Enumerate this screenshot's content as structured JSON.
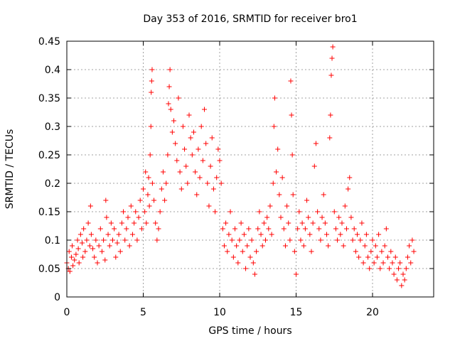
{
  "chart_data": {
    "type": "scatter",
    "title": "Day 353 of 2016, SRMTID for receiver bro1",
    "xlabel": "GPS time / hours",
    "ylabel": "SRMTID / TECUs",
    "xlim": [
      0,
      24
    ],
    "ylim": [
      0,
      0.45
    ],
    "xticks": [
      0,
      5,
      10,
      15,
      20
    ],
    "yticks": [
      0,
      0.05,
      0.1,
      0.15,
      0.2,
      0.25,
      0.3,
      0.35,
      0.4,
      0.45
    ],
    "xtick_labels": [
      "0",
      "5",
      "10",
      "15",
      "20"
    ],
    "ytick_labels": [
      "0",
      "0.05",
      "0.1",
      "0.15",
      "0.2",
      "0.25",
      "0.3",
      "0.35",
      "0.4",
      "0.45"
    ],
    "grid": true,
    "marker": "+",
    "color": "#ff0000",
    "series": [
      {
        "name": "SRMTID",
        "points": [
          [
            0.0,
            0.06
          ],
          [
            0.1,
            0.05
          ],
          [
            0.15,
            0.08
          ],
          [
            0.2,
            0.045
          ],
          [
            0.3,
            0.07
          ],
          [
            0.35,
            0.09
          ],
          [
            0.4,
            0.055
          ],
          [
            0.5,
            0.065
          ],
          [
            0.6,
            0.075
          ],
          [
            0.7,
            0.1
          ],
          [
            0.75,
            0.085
          ],
          [
            0.8,
            0.06
          ],
          [
            0.9,
            0.11
          ],
          [
            1.0,
            0.095
          ],
          [
            1.05,
            0.07
          ],
          [
            1.1,
            0.12
          ],
          [
            1.2,
            0.08
          ],
          [
            1.3,
            0.1
          ],
          [
            1.4,
            0.13
          ],
          [
            1.5,
            0.09
          ],
          [
            1.55,
            0.16
          ],
          [
            1.6,
            0.11
          ],
          [
            1.7,
            0.085
          ],
          [
            1.8,
            0.07
          ],
          [
            1.9,
            0.1
          ],
          [
            2.0,
            0.06
          ],
          [
            2.1,
            0.09
          ],
          [
            2.2,
            0.12
          ],
          [
            2.3,
            0.08
          ],
          [
            2.4,
            0.1
          ],
          [
            2.5,
            0.065
          ],
          [
            2.55,
            0.17
          ],
          [
            2.6,
            0.14
          ],
          [
            2.7,
            0.11
          ],
          [
            2.8,
            0.09
          ],
          [
            2.9,
            0.13
          ],
          [
            3.0,
            0.1
          ],
          [
            3.1,
            0.12
          ],
          [
            3.2,
            0.07
          ],
          [
            3.3,
            0.095
          ],
          [
            3.4,
            0.11
          ],
          [
            3.5,
            0.08
          ],
          [
            3.6,
            0.13
          ],
          [
            3.7,
            0.15
          ],
          [
            3.8,
            0.1
          ],
          [
            3.9,
            0.12
          ],
          [
            4.0,
            0.14
          ],
          [
            4.1,
            0.09
          ],
          [
            4.2,
            0.16
          ],
          [
            4.3,
            0.11
          ],
          [
            4.4,
            0.13
          ],
          [
            4.5,
            0.15
          ],
          [
            4.6,
            0.1
          ],
          [
            4.7,
            0.14
          ],
          [
            4.8,
            0.17
          ],
          [
            4.9,
            0.12
          ],
          [
            5.0,
            0.19
          ],
          [
            5.1,
            0.15
          ],
          [
            5.15,
            0.22
          ],
          [
            5.2,
            0.13
          ],
          [
            5.3,
            0.18
          ],
          [
            5.35,
            0.21
          ],
          [
            5.4,
            0.16
          ],
          [
            5.45,
            0.25
          ],
          [
            5.5,
            0.3
          ],
          [
            5.52,
            0.36
          ],
          [
            5.55,
            0.38
          ],
          [
            5.58,
            0.4
          ],
          [
            5.6,
            0.2
          ],
          [
            5.7,
            0.17
          ],
          [
            5.8,
            0.13
          ],
          [
            5.9,
            0.1
          ],
          [
            6.0,
            0.12
          ],
          [
            6.1,
            0.15
          ],
          [
            6.2,
            0.19
          ],
          [
            6.3,
            0.22
          ],
          [
            6.4,
            0.17
          ],
          [
            6.5,
            0.2
          ],
          [
            6.6,
            0.25
          ],
          [
            6.65,
            0.34
          ],
          [
            6.7,
            0.37
          ],
          [
            6.75,
            0.4
          ],
          [
            6.8,
            0.33
          ],
          [
            6.9,
            0.29
          ],
          [
            7.0,
            0.31
          ],
          [
            7.1,
            0.27
          ],
          [
            7.2,
            0.24
          ],
          [
            7.3,
            0.35
          ],
          [
            7.4,
            0.22
          ],
          [
            7.5,
            0.19
          ],
          [
            7.6,
            0.3
          ],
          [
            7.7,
            0.26
          ],
          [
            7.8,
            0.23
          ],
          [
            7.9,
            0.2
          ],
          [
            8.0,
            0.32
          ],
          [
            8.1,
            0.28
          ],
          [
            8.2,
            0.25
          ],
          [
            8.3,
            0.29
          ],
          [
            8.4,
            0.22
          ],
          [
            8.5,
            0.18
          ],
          [
            8.6,
            0.26
          ],
          [
            8.7,
            0.21
          ],
          [
            8.8,
            0.3
          ],
          [
            8.9,
            0.24
          ],
          [
            9.0,
            0.33
          ],
          [
            9.1,
            0.27
          ],
          [
            9.2,
            0.2
          ],
          [
            9.3,
            0.16
          ],
          [
            9.4,
            0.23
          ],
          [
            9.5,
            0.28
          ],
          [
            9.6,
            0.19
          ],
          [
            9.7,
            0.15
          ],
          [
            9.8,
            0.21
          ],
          [
            9.9,
            0.26
          ],
          [
            10.0,
            0.24
          ],
          [
            10.1,
            0.2
          ],
          [
            10.2,
            0.12
          ],
          [
            10.3,
            0.09
          ],
          [
            10.4,
            0.13
          ],
          [
            10.5,
            0.08
          ],
          [
            10.6,
            0.11
          ],
          [
            10.7,
            0.15
          ],
          [
            10.8,
            0.1
          ],
          [
            10.9,
            0.07
          ],
          [
            11.0,
            0.12
          ],
          [
            11.1,
            0.09
          ],
          [
            11.2,
            0.06
          ],
          [
            11.3,
            0.1
          ],
          [
            11.4,
            0.13
          ],
          [
            11.5,
            0.08
          ],
          [
            11.6,
            0.11
          ],
          [
            11.7,
            0.05
          ],
          [
            11.8,
            0.09
          ],
          [
            11.9,
            0.12
          ],
          [
            12.0,
            0.07
          ],
          [
            12.1,
            0.1
          ],
          [
            12.2,
            0.06
          ],
          [
            12.3,
            0.04
          ],
          [
            12.4,
            0.08
          ],
          [
            12.5,
            0.12
          ],
          [
            12.6,
            0.15
          ],
          [
            12.7,
            0.11
          ],
          [
            12.8,
            0.09
          ],
          [
            12.9,
            0.13
          ],
          [
            13.0,
            0.1
          ],
          [
            13.1,
            0.14
          ],
          [
            13.2,
            0.12
          ],
          [
            13.3,
            0.16
          ],
          [
            13.4,
            0.11
          ],
          [
            13.5,
            0.2
          ],
          [
            13.55,
            0.3
          ],
          [
            13.6,
            0.35
          ],
          [
            13.7,
            0.22
          ],
          [
            13.8,
            0.26
          ],
          [
            13.9,
            0.18
          ],
          [
            14.0,
            0.14
          ],
          [
            14.1,
            0.21
          ],
          [
            14.2,
            0.12
          ],
          [
            14.3,
            0.09
          ],
          [
            14.4,
            0.16
          ],
          [
            14.5,
            0.13
          ],
          [
            14.6,
            0.1
          ],
          [
            14.65,
            0.38
          ],
          [
            14.7,
            0.32
          ],
          [
            14.75,
            0.25
          ],
          [
            14.8,
            0.18
          ],
          [
            14.9,
            0.08
          ],
          [
            15.0,
            0.04
          ],
          [
            15.1,
            0.12
          ],
          [
            15.2,
            0.15
          ],
          [
            15.3,
            0.1
          ],
          [
            15.4,
            0.13
          ],
          [
            15.5,
            0.09
          ],
          [
            15.6,
            0.12
          ],
          [
            15.7,
            0.17
          ],
          [
            15.8,
            0.14
          ],
          [
            15.9,
            0.11
          ],
          [
            16.0,
            0.08
          ],
          [
            16.1,
            0.13
          ],
          [
            16.2,
            0.23
          ],
          [
            16.3,
            0.27
          ],
          [
            16.4,
            0.15
          ],
          [
            16.5,
            0.12
          ],
          [
            16.6,
            0.1
          ],
          [
            16.7,
            0.14
          ],
          [
            16.8,
            0.18
          ],
          [
            16.9,
            0.13
          ],
          [
            17.0,
            0.11
          ],
          [
            17.1,
            0.09
          ],
          [
            17.2,
            0.28
          ],
          [
            17.25,
            0.32
          ],
          [
            17.3,
            0.39
          ],
          [
            17.35,
            0.42
          ],
          [
            17.4,
            0.44
          ],
          [
            17.5,
            0.15
          ],
          [
            17.6,
            0.12
          ],
          [
            17.7,
            0.1
          ],
          [
            17.8,
            0.14
          ],
          [
            17.9,
            0.11
          ],
          [
            18.0,
            0.13
          ],
          [
            18.1,
            0.09
          ],
          [
            18.2,
            0.16
          ],
          [
            18.3,
            0.12
          ],
          [
            18.4,
            0.19
          ],
          [
            18.5,
            0.21
          ],
          [
            18.6,
            0.14
          ],
          [
            18.7,
            0.1
          ],
          [
            18.8,
            0.12
          ],
          [
            18.9,
            0.08
          ],
          [
            19.0,
            0.11
          ],
          [
            19.1,
            0.07
          ],
          [
            19.2,
            0.1
          ],
          [
            19.3,
            0.13
          ],
          [
            19.4,
            0.06
          ],
          [
            19.5,
            0.09
          ],
          [
            19.6,
            0.11
          ],
          [
            19.7,
            0.07
          ],
          [
            19.8,
            0.05
          ],
          [
            19.9,
            0.08
          ],
          [
            20.0,
            0.1
          ],
          [
            20.1,
            0.06
          ],
          [
            20.2,
            0.09
          ],
          [
            20.3,
            0.07
          ],
          [
            20.4,
            0.11
          ],
          [
            20.5,
            0.05
          ],
          [
            20.6,
            0.08
          ],
          [
            20.7,
            0.06
          ],
          [
            20.8,
            0.09
          ],
          [
            20.9,
            0.12
          ],
          [
            21.0,
            0.07
          ],
          [
            21.1,
            0.05
          ],
          [
            21.2,
            0.08
          ],
          [
            21.3,
            0.06
          ],
          [
            21.4,
            0.04
          ],
          [
            21.5,
            0.07
          ],
          [
            21.6,
            0.03
          ],
          [
            21.7,
            0.05
          ],
          [
            21.8,
            0.06
          ],
          [
            21.9,
            0.02
          ],
          [
            22.0,
            0.04
          ],
          [
            22.1,
            0.03
          ],
          [
            22.2,
            0.05
          ],
          [
            22.3,
            0.07
          ],
          [
            22.4,
            0.09
          ],
          [
            22.5,
            0.06
          ],
          [
            22.6,
            0.1
          ],
          [
            22.7,
            0.08
          ]
        ]
      }
    ]
  }
}
